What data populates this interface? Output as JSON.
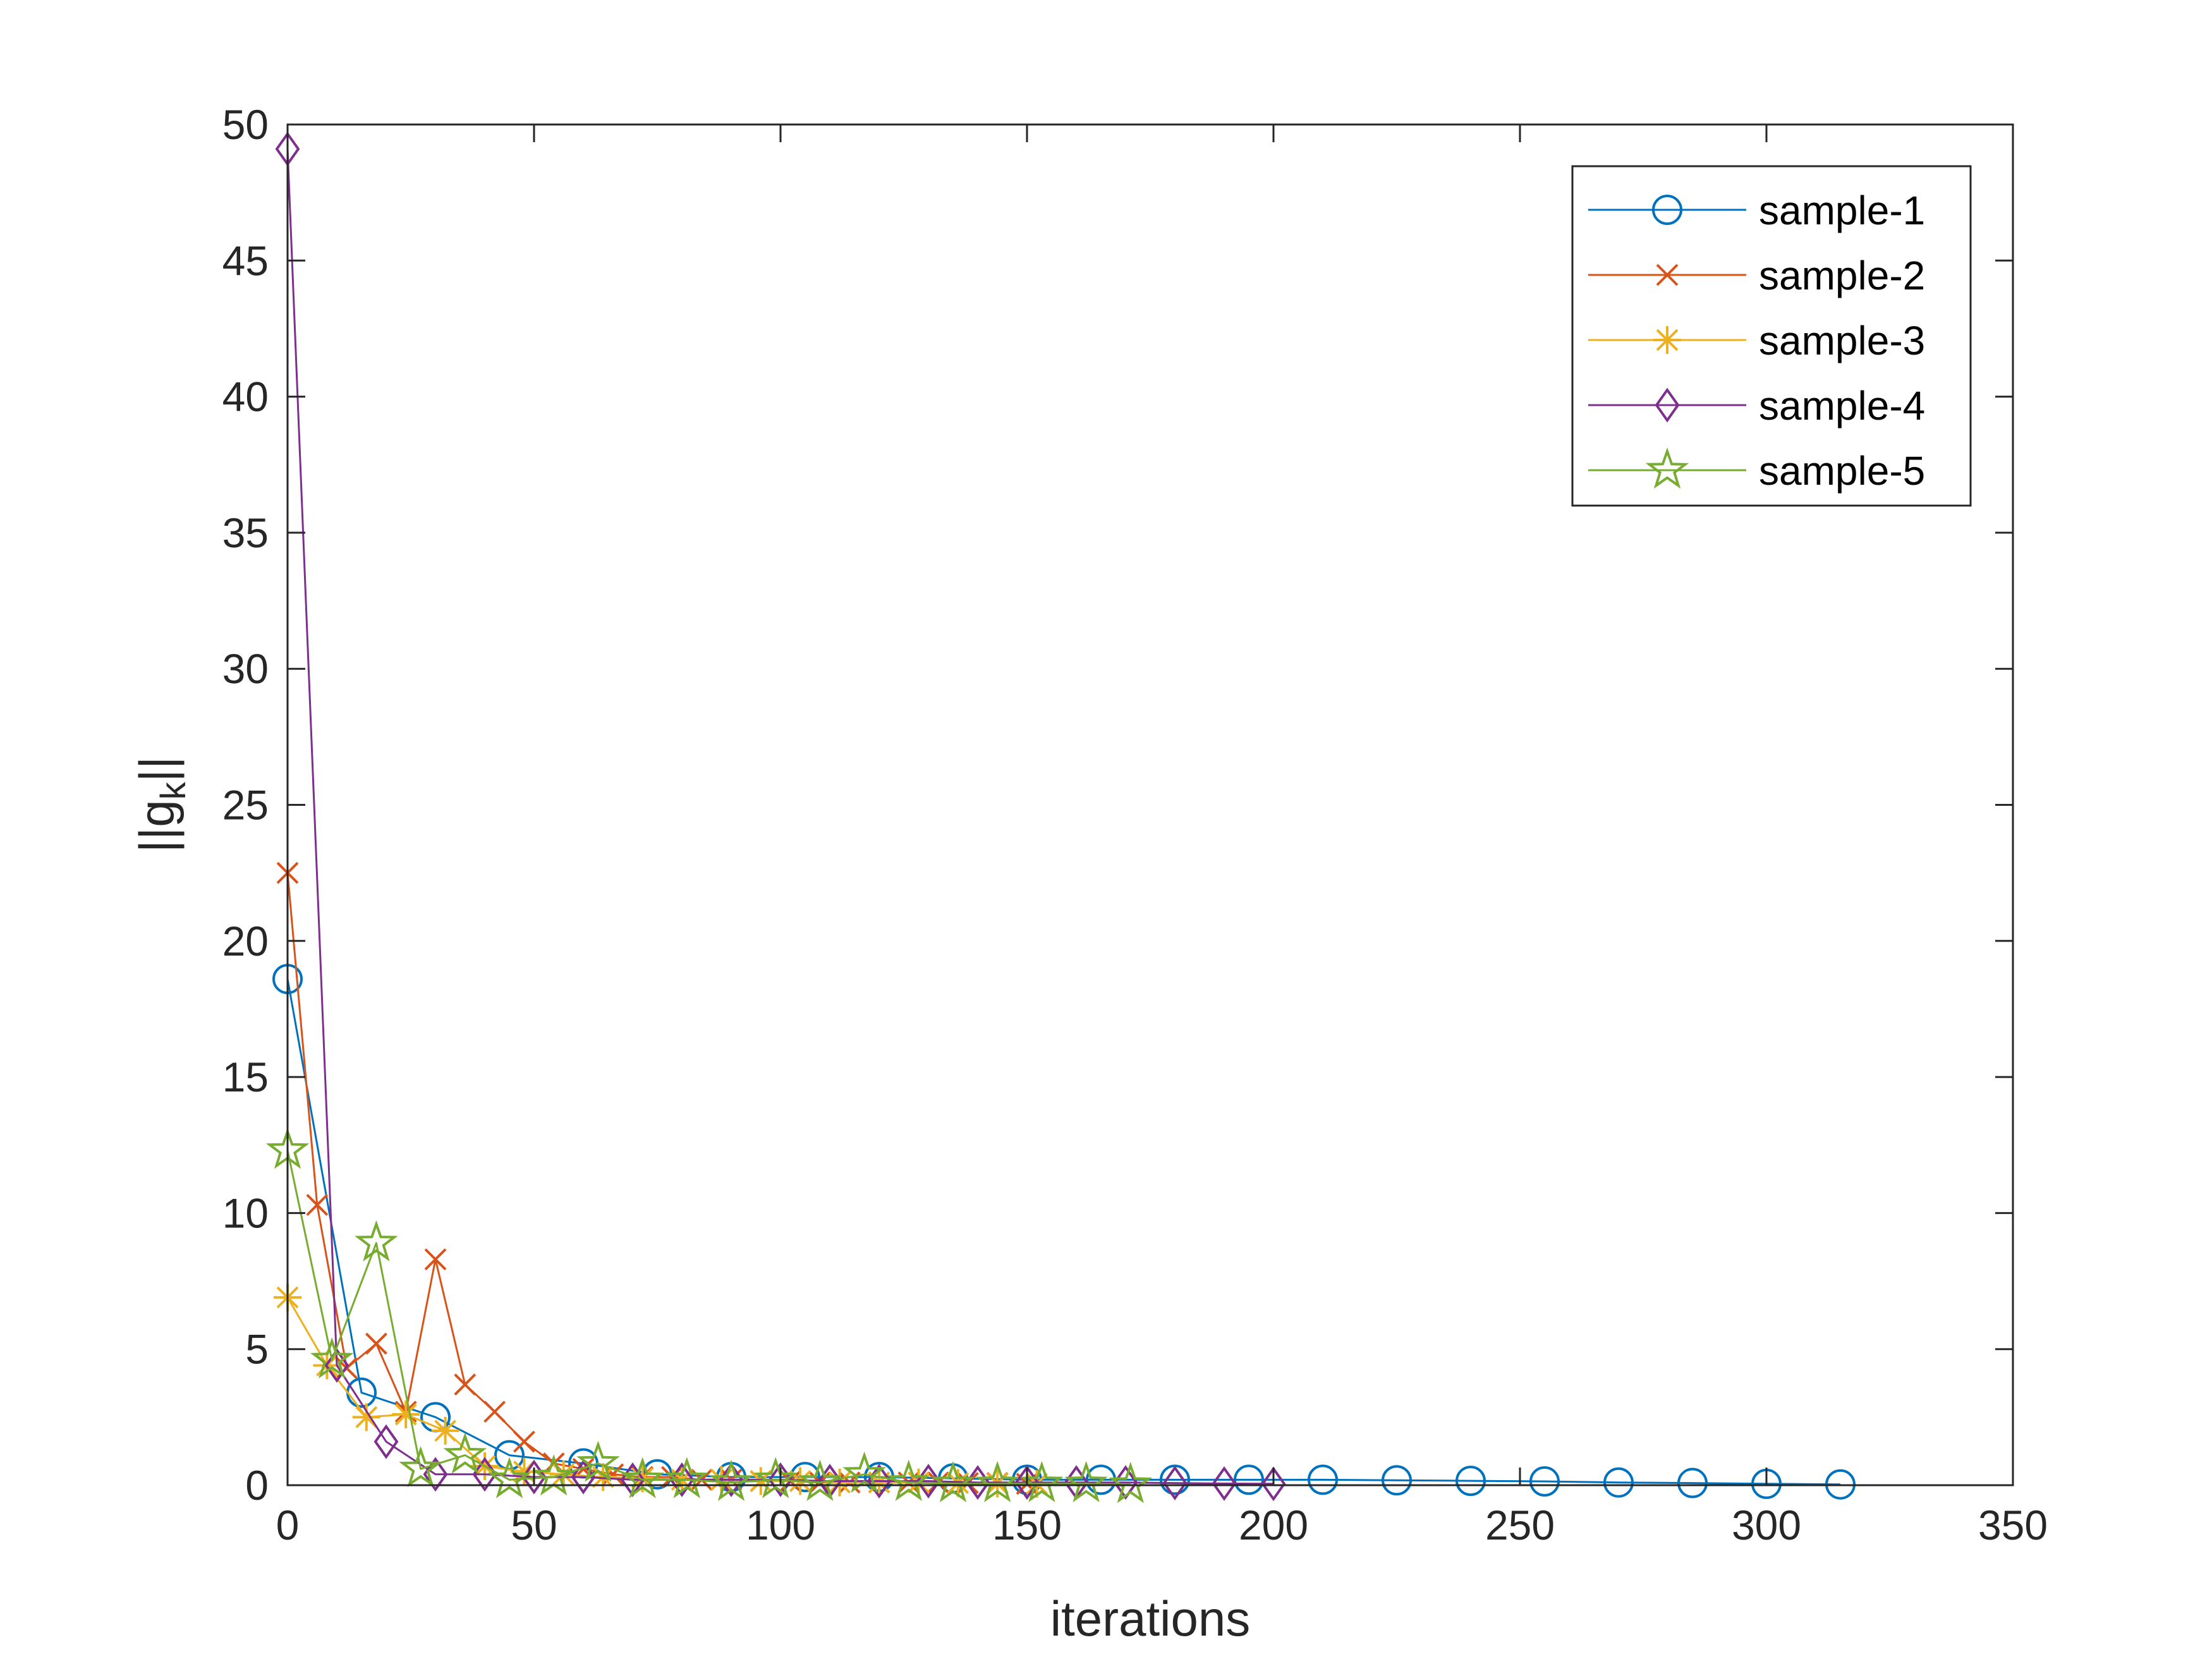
{
  "chart_data": {
    "type": "line",
    "xlabel": "iterations",
    "ylabel": "||g",
    "ylabel_subscript": "k",
    "ylabel_suffix": "||",
    "xlim": [
      0,
      350
    ],
    "ylim": [
      0,
      50
    ],
    "xticks": [
      0,
      50,
      100,
      150,
      200,
      250,
      300,
      350
    ],
    "yticks": [
      0,
      5,
      10,
      15,
      20,
      25,
      30,
      35,
      40,
      45,
      50
    ],
    "grid": false,
    "legend_position": "top-right",
    "series": [
      {
        "name": "sample-1",
        "color": "#0072BD",
        "marker": "circle",
        "x": [
          0,
          15,
          30,
          45,
          60,
          75,
          90,
          105,
          120,
          135,
          150,
          165,
          180,
          195,
          210,
          225,
          240,
          255,
          270,
          285,
          300,
          315
        ],
        "y": [
          18.6,
          3.4,
          2.5,
          1.1,
          0.8,
          0.4,
          0.3,
          0.3,
          0.3,
          0.25,
          0.2,
          0.2,
          0.2,
          0.2,
          0.2,
          0.18,
          0.16,
          0.14,
          0.1,
          0.08,
          0.05,
          0.03
        ]
      },
      {
        "name": "sample-2",
        "color": "#D95319",
        "marker": "x",
        "x": [
          0,
          6,
          12,
          18,
          24,
          30,
          36,
          42,
          48,
          54,
          60,
          66,
          72,
          78,
          84,
          90,
          96,
          102,
          108,
          114,
          120,
          126,
          132,
          138,
          144,
          150
        ],
        "y": [
          22.5,
          10.3,
          4.3,
          5.2,
          2.7,
          8.3,
          3.7,
          2.7,
          1.6,
          0.8,
          0.6,
          0.4,
          0.3,
          0.3,
          0.2,
          0.2,
          0.15,
          0.15,
          0.1,
          0.1,
          0.1,
          0.1,
          0.1,
          0.08,
          0.08,
          0.05
        ]
      },
      {
        "name": "sample-3",
        "color": "#EDB120",
        "marker": "asterisk",
        "x": [
          0,
          8,
          16,
          24,
          32,
          40,
          48,
          56,
          64,
          72,
          80,
          88,
          96,
          104,
          112,
          120,
          128,
          136,
          144,
          152
        ],
        "y": [
          6.9,
          4.4,
          2.5,
          2.6,
          2.0,
          0.7,
          0.5,
          0.4,
          0.3,
          0.25,
          0.2,
          0.2,
          0.15,
          0.15,
          0.1,
          0.1,
          0.1,
          0.08,
          0.06,
          0.05
        ]
      },
      {
        "name": "sample-4",
        "color": "#7E2F8E",
        "marker": "diamond",
        "x": [
          0,
          10,
          20,
          30,
          40,
          50,
          60,
          70,
          80,
          90,
          100,
          110,
          120,
          130,
          140,
          150,
          160,
          170,
          180,
          190,
          200
        ],
        "y": [
          49.1,
          4.4,
          1.6,
          0.4,
          0.4,
          0.3,
          0.3,
          0.2,
          0.2,
          0.2,
          0.2,
          0.15,
          0.15,
          0.15,
          0.1,
          0.1,
          0.1,
          0.1,
          0.08,
          0.06,
          0.05
        ]
      },
      {
        "name": "sample-5",
        "color": "#77AC30",
        "marker": "star",
        "x": [
          0,
          9,
          18,
          27,
          36,
          45,
          54,
          63,
          72,
          81,
          90,
          99,
          108,
          117,
          126,
          135,
          144,
          153,
          162,
          171
        ],
        "y": [
          12.3,
          4.6,
          8.9,
          0.6,
          1.1,
          0.2,
          0.3,
          0.8,
          0.2,
          0.2,
          0.1,
          0.2,
          0.1,
          0.4,
          0.1,
          0.05,
          0.05,
          0.05,
          0.05,
          0.02
        ]
      }
    ]
  }
}
